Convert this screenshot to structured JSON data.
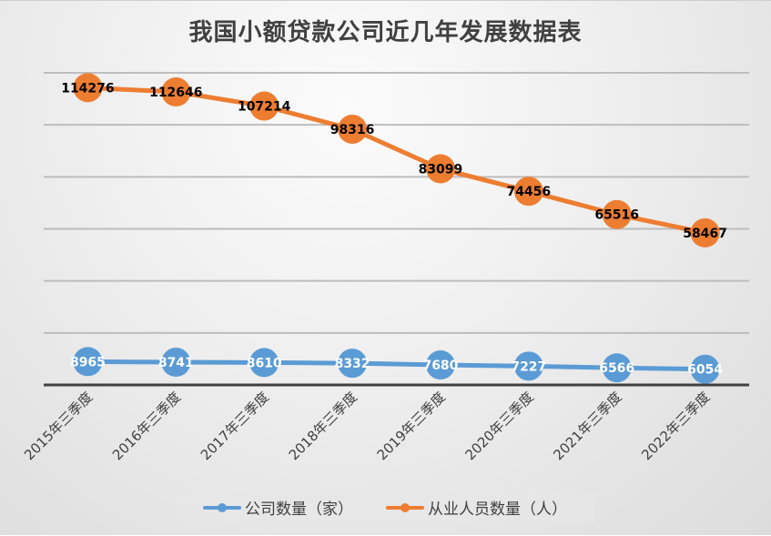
{
  "chart_data": {
    "type": "line",
    "title": "我国小额贷款公司近几年发展数据表",
    "categories": [
      "2015年三季度",
      "2016年三季度",
      "2017年三季度",
      "2018年三季度",
      "2019年三季度",
      "2020年三季度",
      "2021年三季度",
      "2022年三季度"
    ],
    "series": [
      {
        "name": "公司数量（家）",
        "color": "#5B9BD5",
        "label_color": "#ffffff",
        "values": [
          8965,
          8741,
          8610,
          8332,
          7680,
          7227,
          6566,
          6054
        ]
      },
      {
        "name": "从业人员数量（人）",
        "color": "#ED7D31",
        "label_color": "#000000",
        "values": [
          114276,
          112646,
          107214,
          98316,
          83099,
          74456,
          65516,
          58467
        ]
      }
    ],
    "xlabel": "",
    "ylabel": "",
    "ylim": [
      0,
      120000
    ],
    "y_tick_interval": 20000,
    "y_tick_labels_visible": false,
    "grid": true,
    "legend_position": "bottom",
    "data_labels": true
  }
}
